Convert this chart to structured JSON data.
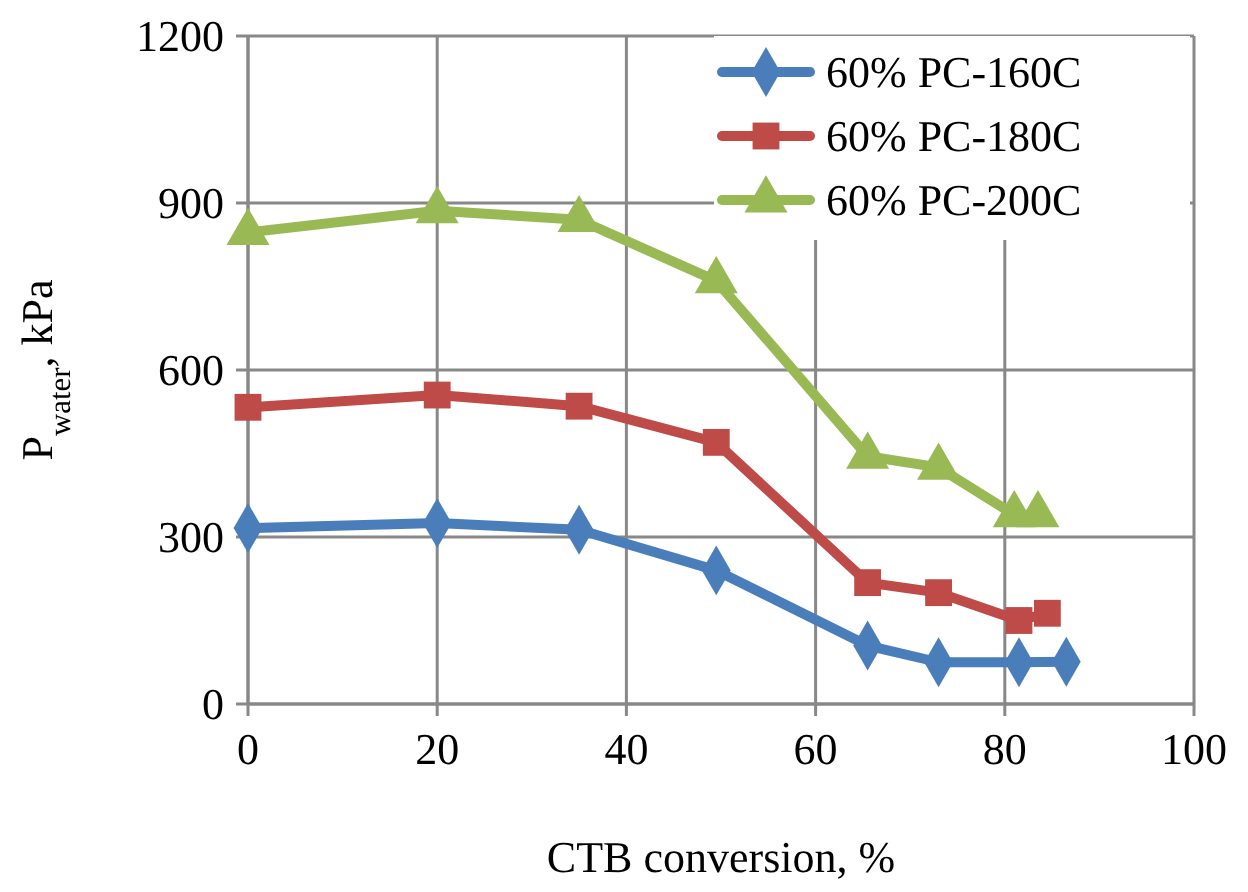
{
  "chart_data": {
    "type": "line",
    "xlabel": "CTB conversion, %",
    "ylabel": "P$_{water}$, kPa",
    "xlim": [
      0,
      100
    ],
    "ylim": [
      0,
      1200
    ],
    "xticks": [
      0,
      20,
      40,
      60,
      80,
      100
    ],
    "yticks": [
      0,
      300,
      600,
      900,
      1200
    ],
    "grid": true,
    "legend": "top right",
    "line_style": "solid",
    "series": [
      {
        "name": "60% PC-160C",
        "color": "#4a7ebb",
        "marker": "diamond",
        "x": [
          0,
          20,
          35,
          49.5,
          65.5,
          73,
          81.5,
          86.5
        ],
        "values": [
          316,
          325,
          313,
          240,
          105,
          75,
          75,
          76
        ]
      },
      {
        "name": "60% PC-180C",
        "color": "#be4b48",
        "marker": "square",
        "x": [
          0,
          20,
          35,
          49.5,
          65.5,
          73,
          81.5,
          84.5
        ],
        "values": [
          533,
          555,
          535,
          470,
          218,
          200,
          150,
          163
        ]
      },
      {
        "name": "60% PC-200C",
        "color": "#98b954",
        "marker": "triangle",
        "x": [
          0,
          20,
          35,
          49.5,
          65.5,
          73,
          81,
          83.5
        ],
        "values": [
          847,
          886,
          870,
          760,
          445,
          425,
          340,
          340
        ]
      }
    ]
  }
}
